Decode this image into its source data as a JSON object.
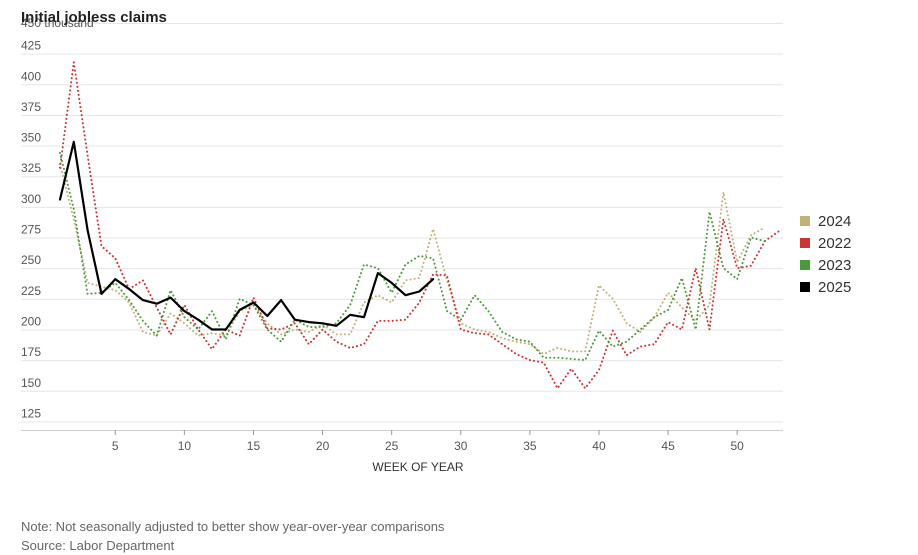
{
  "chart_data": {
    "type": "line",
    "title": "Initial jobless claims",
    "ylabel_unit": "450 thousand",
    "xlabel": "WEEK OF YEAR",
    "ylim": [
      125,
      450
    ],
    "xlim": [
      1,
      53
    ],
    "y_ticks": [
      125,
      150,
      175,
      200,
      225,
      250,
      275,
      300,
      325,
      350,
      375,
      400,
      425
    ],
    "x_ticks": [
      5,
      10,
      15,
      20,
      25,
      30,
      35,
      40,
      45,
      50
    ],
    "grid": true,
    "legend_position": "right",
    "series": [
      {
        "name": "2024",
        "color": "#bfb27a",
        "style": "dotted",
        "x": [
          1,
          2,
          3,
          4,
          5,
          6,
          7,
          8,
          9,
          10,
          11,
          12,
          13,
          14,
          15,
          16,
          17,
          18,
          19,
          20,
          21,
          22,
          23,
          24,
          25,
          26,
          27,
          28,
          29,
          30,
          31,
          32,
          33,
          34,
          35,
          36,
          37,
          38,
          39,
          40,
          41,
          42,
          43,
          44,
          45,
          46,
          47,
          48,
          49,
          50,
          51,
          52
        ],
        "values": [
          335,
          290,
          238,
          235,
          232,
          222,
          198,
          195,
          213,
          205,
          195,
          197,
          195,
          215,
          220,
          205,
          196,
          200,
          198,
          204,
          196,
          196,
          222,
          228,
          222,
          240,
          242,
          282,
          240,
          205,
          200,
          198,
          193,
          190,
          188,
          180,
          185,
          182,
          182,
          236,
          225,
          205,
          198,
          210,
          230,
          218,
          207,
          220,
          312,
          255,
          277,
          283
        ]
      },
      {
        "name": "2022",
        "color": "#cc3333",
        "style": "dotted",
        "x": [
          1,
          2,
          3,
          4,
          5,
          6,
          7,
          8,
          9,
          10,
          11,
          12,
          13,
          14,
          15,
          16,
          17,
          18,
          19,
          20,
          21,
          22,
          23,
          24,
          25,
          26,
          27,
          28,
          29,
          30,
          31,
          32,
          33,
          34,
          35,
          36,
          37,
          38,
          39,
          40,
          41,
          42,
          43,
          44,
          45,
          46,
          47,
          48,
          49,
          50,
          51,
          52,
          53
        ],
        "values": [
          332,
          418,
          342,
          268,
          258,
          233,
          240,
          218,
          196,
          220,
          200,
          184,
          200,
          195,
          226,
          201,
          200,
          205,
          188,
          200,
          190,
          185,
          188,
          207,
          207,
          208,
          222,
          245,
          244,
          200,
          197,
          196,
          188,
          180,
          175,
          173,
          152,
          168,
          152,
          167,
          199,
          179,
          186,
          188,
          206,
          200,
          250,
          200,
          290,
          250,
          252,
          272,
          280
        ]
      },
      {
        "name": "2023",
        "color": "#4a9a3c",
        "style": "dotted",
        "x": [
          1,
          2,
          3,
          4,
          5,
          6,
          7,
          8,
          9,
          10,
          11,
          12,
          13,
          14,
          15,
          16,
          17,
          18,
          19,
          20,
          21,
          22,
          23,
          24,
          25,
          26,
          27,
          28,
          29,
          30,
          31,
          32,
          33,
          34,
          35,
          36,
          37,
          38,
          39,
          40,
          41,
          42,
          43,
          44,
          45,
          46,
          47,
          48,
          49,
          50,
          51,
          52
        ],
        "values": [
          344,
          298,
          229,
          230,
          238,
          224,
          207,
          195,
          232,
          210,
          200,
          215,
          192,
          225,
          220,
          200,
          190,
          208,
          202,
          202,
          205,
          220,
          253,
          250,
          230,
          253,
          260,
          258,
          215,
          208,
          228,
          215,
          198,
          192,
          190,
          177,
          177,
          176,
          175,
          199,
          186,
          190,
          200,
          210,
          216,
          242,
          200,
          296,
          250,
          241,
          275,
          272
        ]
      },
      {
        "name": "2025",
        "color": "#000000",
        "style": "solid",
        "x": [
          1,
          2,
          3,
          4,
          5,
          6,
          7,
          8,
          9,
          10,
          11,
          12,
          13,
          14,
          15,
          16,
          17,
          18,
          19,
          20,
          21,
          22,
          23,
          24,
          25,
          26,
          27,
          28
        ],
        "values": [
          306,
          353,
          281,
          229,
          241,
          233,
          224,
          221,
          226,
          215,
          208,
          200,
          200,
          216,
          222,
          211,
          224,
          208,
          206,
          205,
          203,
          212,
          210,
          246,
          238,
          228,
          231,
          241
        ]
      }
    ]
  },
  "legend": {
    "items": [
      {
        "label": "2024",
        "color": "#bfb27a"
      },
      {
        "label": "2022",
        "color": "#cc3333"
      },
      {
        "label": "2023",
        "color": "#4a9a3c"
      },
      {
        "label": "2025",
        "color": "#000000"
      }
    ]
  },
  "footer": {
    "note": "Note: Not seasonally adjusted to better show year-over-year comparisons",
    "source": "Source: Labor Department"
  }
}
